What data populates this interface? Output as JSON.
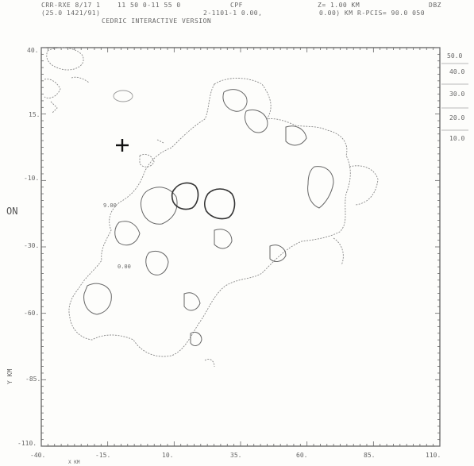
{
  "header": {
    "line1_a": "CRR-RXE 8/17 1",
    "line1_b": "11 50  0-11 55  0",
    "line1_c": "CPF",
    "line1_d": "Z=  1.00 KM",
    "line1_e": "DBZ",
    "line2_a": "(25.0   1421/91)",
    "line2_b": "2-1101-1  0.00,",
    "line2_c": "0.00) KM",
    "line2_d": "R-PCIS=  90.0 050",
    "subtitle": "CEDRIC  INTERACTIVE VERSION"
  },
  "axes": {
    "y_ticks": [
      "40.",
      "15.",
      "-10.",
      "-30.",
      "-60.",
      "-85.",
      "-110."
    ],
    "x_ticks": [
      "-40.",
      "-15.",
      "10.",
      "35.",
      "60.",
      "85.",
      "110."
    ],
    "y_side_label": "ON",
    "y_axis_title": "Y KM",
    "x_axis_title": "X KM"
  },
  "legend": {
    "levels": [
      "50.0",
      "40.0",
      "30.0",
      "20.0",
      "10.0"
    ],
    "colors": [
      "#444444",
      "#555555",
      "#666666",
      "#777777",
      "#888888"
    ]
  },
  "plot": {
    "contour_labels": [
      "9.00",
      "0.00"
    ],
    "marker_icon": "plus-marker-icon"
  }
}
